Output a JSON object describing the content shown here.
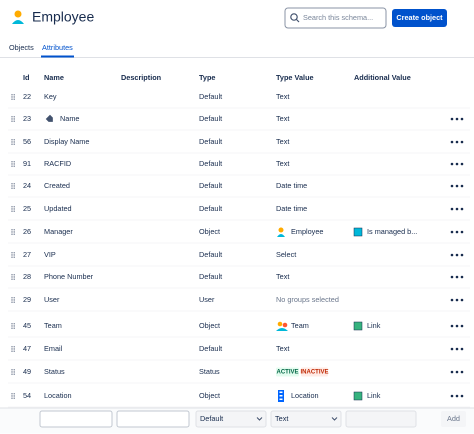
{
  "header": {
    "title": "Employee",
    "search_placeholder": "Search this schema...",
    "create_button": "Create object"
  },
  "tabs": [
    "Objects",
    "Attributes"
  ],
  "table": {
    "columns": [
      "Id",
      "Name",
      "Description",
      "Type",
      "Type Value",
      "Additional Value"
    ],
    "rows": [
      {
        "id": "22",
        "name": "Key",
        "type": "Default",
        "type_value": "Text"
      },
      {
        "id": "23",
        "name": "Name",
        "type": "Default",
        "type_value": "Text"
      },
      {
        "id": "56",
        "name": "Display Name",
        "type": "Default",
        "type_value": "Text"
      },
      {
        "id": "91",
        "name": "RACFID",
        "type": "Default",
        "type_value": "Text"
      },
      {
        "id": "24",
        "name": "Created",
        "type": "Default",
        "type_value": "Date time"
      },
      {
        "id": "25",
        "name": "Updated",
        "type": "Default",
        "type_value": "Date time"
      },
      {
        "id": "26",
        "name": "Manager",
        "type": "Object",
        "type_value": "Employee",
        "additional": "Is managed b..."
      },
      {
        "id": "27",
        "name": "VIP",
        "type": "Default",
        "type_value": "Select"
      },
      {
        "id": "28",
        "name": "Phone Number",
        "type": "Default",
        "type_value": "Text"
      },
      {
        "id": "29",
        "name": "User",
        "type": "User",
        "type_value": "No groups selected"
      },
      {
        "id": "45",
        "name": "Team",
        "type": "Object",
        "type_value": "Team",
        "additional": "Link"
      },
      {
        "id": "47",
        "name": "Email",
        "type": "Default",
        "type_value": "Text"
      },
      {
        "id": "49",
        "name": "Status",
        "type": "Status",
        "badges": [
          "ACTIVE",
          "INACTIVE"
        ]
      },
      {
        "id": "54",
        "name": "Location",
        "type": "Object",
        "type_value": "Location",
        "additional": "Link"
      }
    ]
  },
  "footer": {
    "type": "Default",
    "type_value": "Text",
    "add": "Add"
  }
}
